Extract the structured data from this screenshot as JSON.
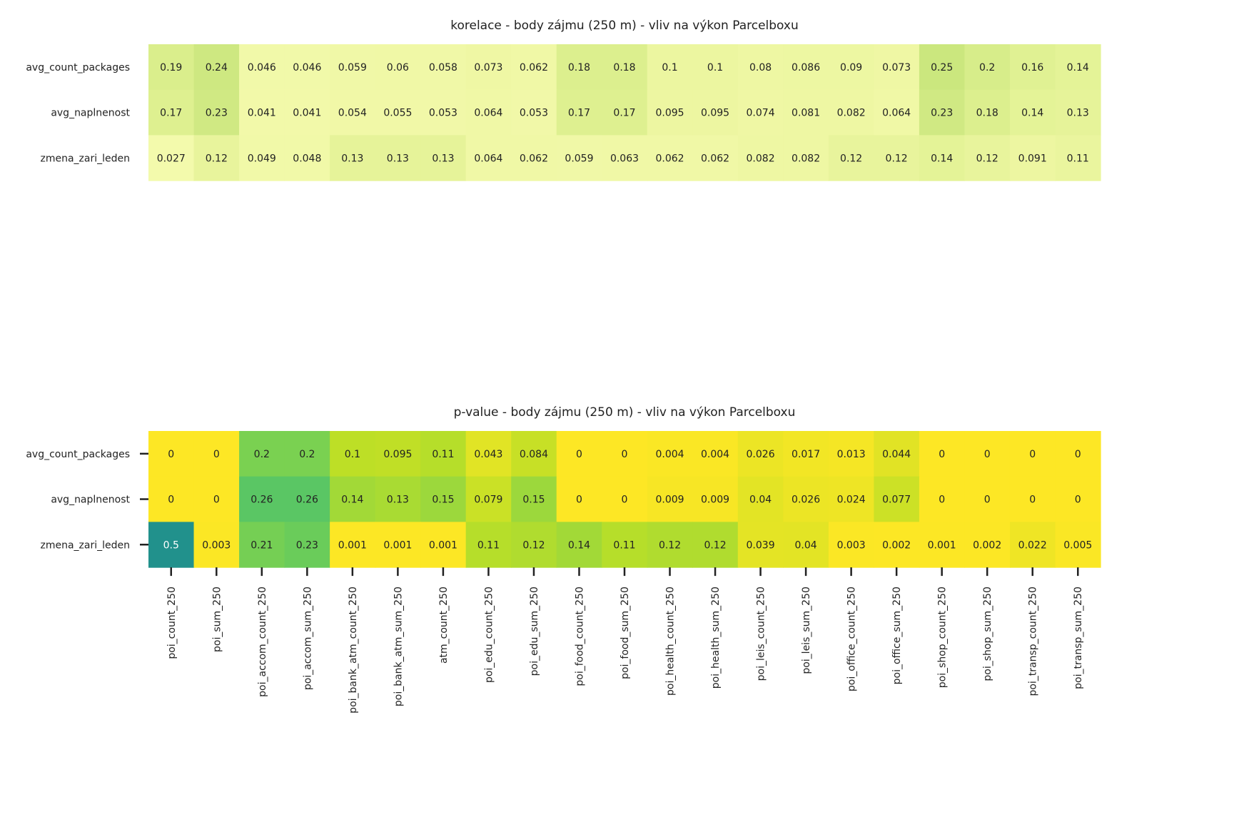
{
  "chart_data": [
    {
      "type": "heatmap",
      "title": "korelace - body zájmu (250 m) - vliv na výkon Parcelboxu",
      "rows": [
        "avg_count_packages",
        "avg_naplnenost",
        "zmena_zari_leden"
      ],
      "columns": [
        "poi_count_250",
        "poi_sum_250",
        "poi_accom_count_250",
        "poi_accom_sum_250",
        "poi_bank_atm_count_250",
        "poi_bank_atm_sum_250",
        "atm_count_250",
        "poi_edu_count_250",
        "poi_edu_sum_250",
        "poi_food_count_250",
        "poi_food_sum_250",
        "poi_health_count_250",
        "poi_health_sum_250",
        "poi_leis_count_250",
        "poi_leis_sum_250",
        "poi_office_count_250",
        "poi_office_sum_250",
        "poi_shop_count_250",
        "poi_shop_sum_250",
        "poi_transp_count_250",
        "poi_transp_sum_250"
      ],
      "values": [
        [
          "0.19",
          "0.24",
          "0.046",
          "0.046",
          "0.059",
          "0.06",
          "0.058",
          "0.073",
          "0.062",
          "0.18",
          "0.18",
          "0.1",
          "0.1",
          "0.08",
          "0.086",
          "0.09",
          "0.073",
          "0.25",
          "0.2",
          "0.16",
          "0.14"
        ],
        [
          "0.17",
          "0.23",
          "0.041",
          "0.041",
          "0.054",
          "0.055",
          "0.053",
          "0.064",
          "0.053",
          "0.17",
          "0.17",
          "0.095",
          "0.095",
          "0.074",
          "0.081",
          "0.082",
          "0.064",
          "0.23",
          "0.18",
          "0.14",
          "0.13"
        ],
        [
          "0.027",
          "0.12",
          "0.049",
          "0.048",
          "0.13",
          "0.13",
          "0.13",
          "0.064",
          "0.062",
          "0.059",
          "0.063",
          "0.062",
          "0.062",
          "0.082",
          "0.082",
          "0.12",
          "0.12",
          "0.14",
          "0.12",
          "0.091",
          "0.11"
        ]
      ],
      "colormap": "light yellow-green (low = pale yellow, high = green)",
      "show_xticklabels": false,
      "colorbar": false
    },
    {
      "type": "heatmap",
      "title": "p-value - body zájmu (250 m) - vliv na výkon Parcelboxu",
      "rows": [
        "avg_count_packages",
        "avg_naplnenost",
        "zmena_zari_leden"
      ],
      "columns": [
        "poi_count_250",
        "poi_sum_250",
        "poi_accom_count_250",
        "poi_accom_sum_250",
        "poi_bank_atm_count_250",
        "poi_bank_atm_sum_250",
        "atm_count_250",
        "poi_edu_count_250",
        "poi_edu_sum_250",
        "poi_food_count_250",
        "poi_food_sum_250",
        "poi_health_count_250",
        "poi_health_sum_250",
        "poi_leis_count_250",
        "poi_leis_sum_250",
        "poi_office_count_250",
        "poi_office_sum_250",
        "poi_shop_count_250",
        "poi_shop_sum_250",
        "poi_transp_count_250",
        "poi_transp_sum_250"
      ],
      "values": [
        [
          "0",
          "0",
          "0.2",
          "0.2",
          "0.1",
          "0.095",
          "0.11",
          "0.043",
          "0.084",
          "0",
          "0",
          "0.004",
          "0.004",
          "0.026",
          "0.017",
          "0.013",
          "0.044",
          "0",
          "0",
          "0",
          "0"
        ],
        [
          "0",
          "0",
          "0.26",
          "0.26",
          "0.14",
          "0.13",
          "0.15",
          "0.079",
          "0.15",
          "0",
          "0",
          "0.009",
          "0.009",
          "0.04",
          "0.026",
          "0.024",
          "0.077",
          "0",
          "0",
          "0",
          "0"
        ],
        [
          "0.5",
          "0.003",
          "0.21",
          "0.23",
          "0.001",
          "0.001",
          "0.001",
          "0.11",
          "0.12",
          "0.14",
          "0.11",
          "0.12",
          "0.12",
          "0.039",
          "0.04",
          "0.003",
          "0.002",
          "0.001",
          "0.002",
          "0.022",
          "0.005"
        ]
      ],
      "colormap": "viridis reversed (0 = yellow, 0.5 = teal)",
      "show_xticklabels": true,
      "colorbar": false
    }
  ]
}
